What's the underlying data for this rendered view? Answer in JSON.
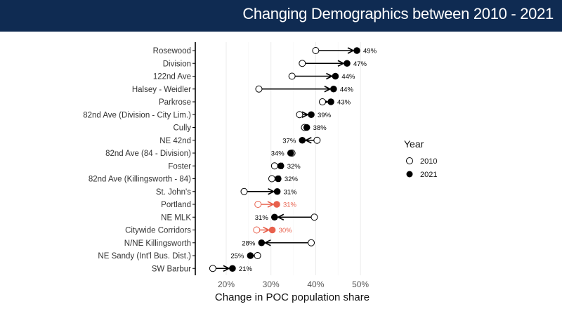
{
  "header": {
    "title": "Changing Demographics between 2010 - 2021"
  },
  "chart_data": {
    "type": "dumbbell-arrow",
    "xlabel": "Change in POC population share",
    "ylabel": "",
    "xlim": [
      16,
      53
    ],
    "x_ticks": [
      "20%",
      "30%",
      "40%",
      "50%"
    ],
    "x_tick_values": [
      20,
      30,
      40,
      50
    ],
    "grid": true,
    "legend": {
      "title": "Year",
      "placement": "right",
      "entries": [
        "2010",
        "2021"
      ]
    },
    "colors": {
      "default": "#000000",
      "highlight": "#e8604c"
    },
    "categories": [
      "Rosewood",
      "Division",
      "122nd Ave",
      "Halsey - Weidler",
      "Parkrose",
      "82nd Ave (Division - City Lim.)",
      "Cully",
      "NE 42nd",
      "82nd Ave (84 - Division)",
      "Foster",
      "82nd Ave (Killingsworth - 84)",
      "St. John's",
      "Portland",
      "NE MLK",
      "Citywide Corridors",
      "N/NE Killingsworth",
      "NE Sandy (Int'l Bus. Dist.)",
      "SW Barbur"
    ],
    "series": [
      {
        "name": "2010",
        "values": [
          40,
          37,
          34.7,
          27.3,
          41.5,
          36.4,
          37.5,
          40.3,
          34.7,
          30.8,
          30.2,
          24,
          27.1,
          39.7,
          26.8,
          39,
          27,
          17
        ]
      },
      {
        "name": "2021",
        "values": [
          49.2,
          47,
          44.4,
          44,
          43.4,
          39,
          38,
          37,
          34.4,
          32.2,
          31.6,
          31.4,
          31.3,
          30.8,
          30.3,
          27.9,
          25.4,
          21.4
        ]
      }
    ],
    "data_labels": [
      "49%",
      "47%",
      "44%",
      "44%",
      "43%",
      "39%",
      "38%",
      "37%",
      "34%",
      "32%",
      "32%",
      "31%",
      "31%",
      "31%",
      "30%",
      "28%",
      "25%",
      "21%"
    ],
    "highlighted": [
      "Portland",
      "Citywide Corridors"
    ]
  }
}
